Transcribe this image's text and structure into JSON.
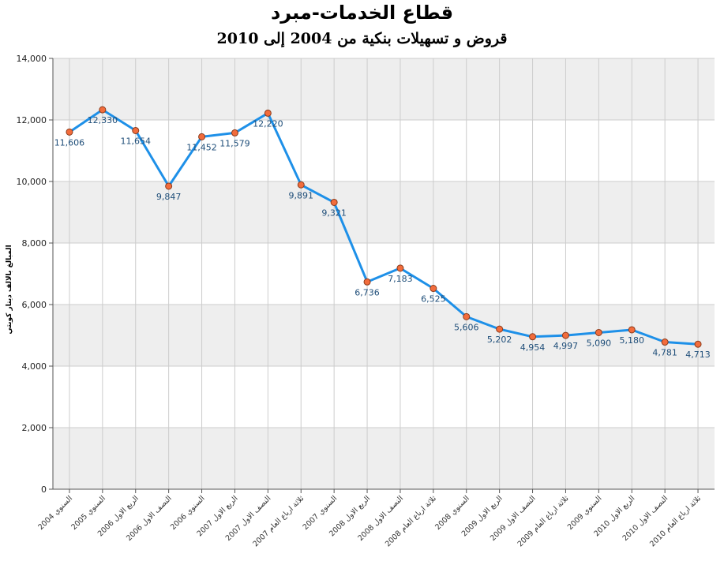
{
  "chart_data": {
    "type": "line",
    "title": "قطاع الخدمات-مبرد",
    "subtitle": "قروض و تسهيلات بنكية من 2004 إلى 2010",
    "xlabel": "",
    "ylabel": "المبالغ بالالف دينار كويتي",
    "ylim": [
      0,
      14000
    ],
    "yticks": [
      "0",
      "2,000",
      "4,000",
      "6,000",
      "8,000",
      "10,000",
      "12,000",
      "14,000"
    ],
    "grid": true,
    "legend": "none",
    "categories": [
      "السنوي 2004",
      "السنوي 2005",
      "الربع الاول 2006",
      "النصف الاول 2006",
      "السنوي 2006",
      "الربع الاول 2007",
      "النصف الاول 2007",
      "ثلاثة ارباع العام 2007",
      "السنوي 2007",
      "الربع الاول 2008",
      "النصف الاول 2008",
      "ثلاثة ارباع العام 2008",
      "السنوي 2008",
      "الربع الاول 2009",
      "النصف الاول 2009",
      "ثلاثة ارباع العام 2009",
      "السنوي 2009",
      "الربع الاول 2010",
      "النصف الاول 2010",
      "ثلاثة ارباع العام 2010"
    ],
    "series": [
      {
        "values": [
          11606,
          12330,
          11654,
          9847,
          11452,
          11579,
          12220,
          9891,
          9321,
          6736,
          7183,
          6525,
          5606,
          5202,
          4954,
          4997,
          5090,
          5180,
          4781,
          4713
        ],
        "labels": [
          "11,606",
          "12,330",
          "11,654",
          "9,847",
          "11,452",
          "11,579",
          "12,220",
          "9,891",
          "9,321",
          "6,736",
          "7,183",
          "6,525",
          "5,606",
          "5,202",
          "4,954",
          "4,997",
          "5,090",
          "5,180",
          "4,781",
          "4,713"
        ]
      }
    ],
    "colors": {
      "line": "#1e90e8",
      "marker_fill": "#f26c3c",
      "marker_stroke": "#8b3a1a",
      "band": "#eeeeee",
      "gridline": "#cccccc",
      "data_label": "#1f4e79"
    }
  }
}
